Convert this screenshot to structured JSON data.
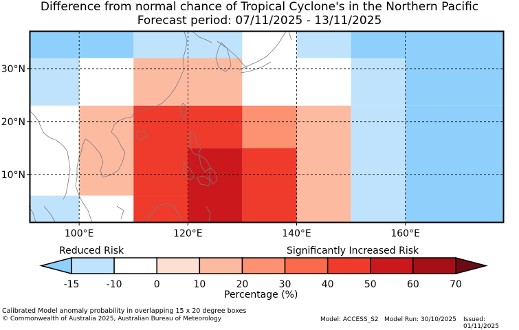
{
  "title": {
    "line1": "Difference from normal chance of Tropical Cyclone's in the Northern Pacific",
    "line2": "Forecast period: 07/11/2025 - 13/11/2025"
  },
  "map": {
    "lon_range": [
      91,
      178
    ],
    "lat_range": [
      1,
      37
    ],
    "lon_ticks": [
      {
        "value": 100,
        "label": "100°E"
      },
      {
        "value": 120,
        "label": "120°E"
      },
      {
        "value": 140,
        "label": "140°E"
      },
      {
        "value": 160,
        "label": "160°E"
      }
    ],
    "lat_ticks": [
      {
        "value": 10,
        "label": "10°N"
      },
      {
        "value": 20,
        "label": "20°N"
      },
      {
        "value": 30,
        "label": "30°N"
      }
    ],
    "grid": "dashed",
    "cells": [
      {
        "lon": [
          91,
          110
        ],
        "lat": [
          32,
          37
        ],
        "level": -15
      },
      {
        "lon": [
          110,
          130
        ],
        "lat": [
          32,
          37
        ],
        "level": -10
      },
      {
        "lon": [
          130,
          140
        ],
        "lat": [
          32,
          37
        ],
        "level": 0
      },
      {
        "lon": [
          140,
          150
        ],
        "lat": [
          32,
          37
        ],
        "level": -10
      },
      {
        "lon": [
          150,
          178
        ],
        "lat": [
          32,
          37
        ],
        "level": -15
      },
      {
        "lon": [
          91,
          100
        ],
        "lat": [
          23,
          32
        ],
        "level": -10
      },
      {
        "lon": [
          100,
          110
        ],
        "lat": [
          23,
          32
        ],
        "level": 0
      },
      {
        "lon": [
          110,
          130
        ],
        "lat": [
          23,
          32
        ],
        "level": 10
      },
      {
        "lon": [
          130,
          140
        ],
        "lat": [
          23,
          32
        ],
        "level": 0
      },
      {
        "lon": [
          140,
          150
        ],
        "lat": [
          23,
          32
        ],
        "level": 0
      },
      {
        "lon": [
          150,
          160
        ],
        "lat": [
          23,
          32
        ],
        "level": -10
      },
      {
        "lon": [
          160,
          178
        ],
        "lat": [
          23,
          32
        ],
        "level": -15
      },
      {
        "lon": [
          91,
          100
        ],
        "lat": [
          6,
          23
        ],
        "level": 0
      },
      {
        "lon": [
          100,
          110
        ],
        "lat": [
          6,
          23
        ],
        "level": 10
      },
      {
        "lon": [
          110,
          120
        ],
        "lat": [
          6,
          23
        ],
        "level": 40
      },
      {
        "lon": [
          120,
          130
        ],
        "lat": [
          15,
          23
        ],
        "level": 40
      },
      {
        "lon": [
          130,
          140
        ],
        "lat": [
          15,
          23
        ],
        "level": 20
      },
      {
        "lon": [
          120,
          130
        ],
        "lat": [
          1,
          15
        ],
        "level": 50
      },
      {
        "lon": [
          130,
          140
        ],
        "lat": [
          1,
          15
        ],
        "level": 40
      },
      {
        "lon": [
          140,
          150
        ],
        "lat": [
          1,
          23
        ],
        "level": 10
      },
      {
        "lon": [
          150,
          160
        ],
        "lat": [
          1,
          23
        ],
        "level": -10
      },
      {
        "lon": [
          160,
          178
        ],
        "lat": [
          1,
          23
        ],
        "level": -15
      },
      {
        "lon": [
          91,
          100
        ],
        "lat": [
          1,
          6
        ],
        "level": -10
      },
      {
        "lon": [
          100,
          110
        ],
        "lat": [
          1,
          6
        ],
        "level": 0
      },
      {
        "lon": [
          110,
          120
        ],
        "lat": [
          1,
          6
        ],
        "level": 40
      }
    ]
  },
  "colorbar": {
    "left_label": "Reduced Risk",
    "right_label": "Significantly Increased Risk",
    "xlabel": "Percentage (%)",
    "ticks": [
      "-15",
      "-10",
      "0",
      "10",
      "20",
      "30",
      "40",
      "50",
      "60",
      "70"
    ],
    "under_color": "#8ed0fb",
    "over_color": "#6b0b14",
    "colors": [
      "#bfe3fc",
      "#ffffff",
      "#fee0d2",
      "#fcbba1",
      "#fc9272",
      "#fb6a4a",
      "#ef3b2c",
      "#cb181d",
      "#a50f15"
    ]
  },
  "level_colors": {
    "-15": "#8ed0fb",
    "-10": "#bfe3fc",
    "0": "#ffffff",
    "10": "#fcbba1",
    "20": "#fc9272",
    "40": "#ef3b2c",
    "50": "#cb181d"
  },
  "footer": {
    "note": "Calibrated Model anomaly probability in overlapping 15 x 20 degree boxes",
    "copyright": "© Commonwealth of Australia 2025, Australian Bureau of Meteorology",
    "model": "Model: ACCESS_S2",
    "model_run": "Model Run: 30/10/2025",
    "issued": "Issued: 01/11/2025"
  }
}
